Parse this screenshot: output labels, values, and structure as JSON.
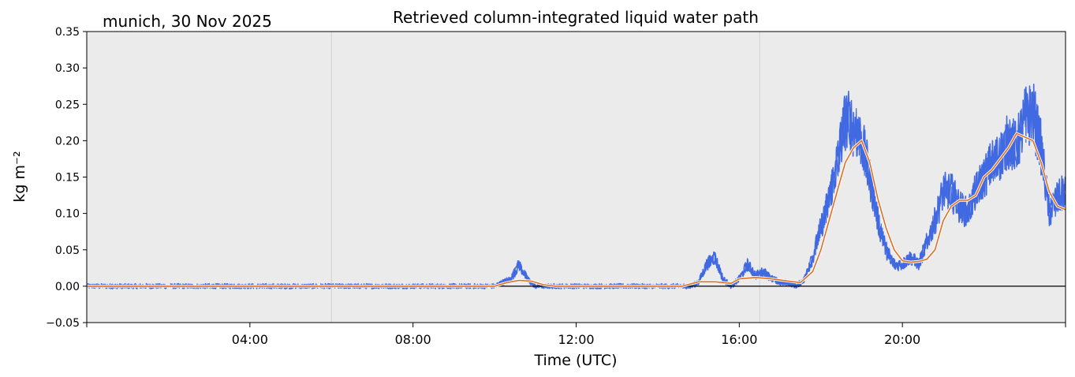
{
  "chart_data": {
    "type": "line",
    "title": "Retrieved column-integrated liquid water path",
    "subtitle": "munich, 30 Nov 2025",
    "xlabel": "Time (UTC)",
    "ylabel": "kg m⁻²",
    "xlim_hours": [
      0,
      24
    ],
    "ylim": [
      -0.05,
      0.35
    ],
    "x_ticks": [
      "04:00",
      "08:00",
      "12:00",
      "16:00",
      "20:00"
    ],
    "x_tick_hours": [
      4,
      8,
      12,
      16,
      20
    ],
    "y_ticks": [
      "−0.05",
      "0.00",
      "0.05",
      "0.10",
      "0.15",
      "0.20",
      "0.25",
      "0.30",
      "0.35"
    ],
    "y_tick_values": [
      -0.05,
      0.0,
      0.05,
      0.1,
      0.15,
      0.2,
      0.25,
      0.3,
      0.35
    ],
    "grid": false,
    "background": "#ebebeb",
    "vertical_markers_hours": [
      6.0,
      16.5
    ],
    "zero_line": true,
    "series": [
      {
        "role": "raw retrieval (scatter)",
        "color": "#4169e1",
        "x": [
          0,
          1,
          2,
          3,
          4,
          5,
          6,
          7,
          8,
          9,
          10,
          10.4,
          10.6,
          10.8,
          11,
          11.5,
          12,
          13,
          14,
          14.8,
          15.0,
          15.2,
          15.4,
          15.6,
          15.8,
          16.0,
          16.2,
          16.4,
          16.6,
          16.8,
          17.0,
          17.2,
          17.4,
          17.6,
          17.8,
          18.0,
          18.2,
          18.4,
          18.6,
          18.8,
          19.0,
          19.2,
          19.4,
          19.6,
          19.8,
          20.0,
          20.2,
          20.4,
          20.6,
          20.8,
          21.0,
          21.2,
          21.4,
          21.6,
          21.8,
          22.0,
          22.2,
          22.4,
          22.6,
          22.8,
          23.0,
          23.2,
          23.4,
          23.6,
          23.8,
          24.0
        ],
        "y": [
          0.0,
          0.0,
          0.0,
          0.0,
          0.0,
          0.0,
          0.0,
          0.0,
          0.0,
          0.0,
          0.0,
          0.01,
          0.03,
          0.01,
          0.0,
          0.0,
          0.0,
          0.0,
          0.0,
          0.0,
          0.005,
          0.03,
          0.04,
          0.01,
          0.0,
          0.01,
          0.03,
          0.015,
          0.02,
          0.01,
          0.005,
          0.005,
          0.0,
          0.01,
          0.04,
          0.08,
          0.12,
          0.17,
          0.23,
          0.22,
          0.2,
          0.15,
          0.09,
          0.05,
          0.03,
          0.03,
          0.04,
          0.03,
          0.06,
          0.09,
          0.13,
          0.13,
          0.11,
          0.1,
          0.13,
          0.15,
          0.17,
          0.18,
          0.2,
          0.19,
          0.23,
          0.24,
          0.19,
          0.1,
          0.12,
          0.13
        ]
      },
      {
        "role": "smoothed",
        "color": "#e06d1f",
        "x": [
          0,
          1,
          2,
          3,
          4,
          5,
          6,
          7,
          8,
          9,
          10,
          10.3,
          10.6,
          10.9,
          11.2,
          11.5,
          12,
          13,
          14,
          14.6,
          15.0,
          15.4,
          15.8,
          16.0,
          16.4,
          16.8,
          17.2,
          17.5,
          17.8,
          18.0,
          18.2,
          18.4,
          18.6,
          18.8,
          19.0,
          19.2,
          19.4,
          19.6,
          19.8,
          20.0,
          20.2,
          20.4,
          20.6,
          20.8,
          21.0,
          21.2,
          21.4,
          21.6,
          21.8,
          22.0,
          22.2,
          22.4,
          22.6,
          22.8,
          23.0,
          23.2,
          23.4,
          23.6,
          23.8,
          24.0
        ],
        "y": [
          0.0,
          0.0,
          0.0,
          0.0,
          0.0,
          0.0,
          0.0,
          0.0,
          0.0,
          0.0,
          0.0,
          0.005,
          0.008,
          0.007,
          0.002,
          0.0,
          0.0,
          0.0,
          0.0,
          0.0,
          0.006,
          0.006,
          0.004,
          0.01,
          0.012,
          0.01,
          0.007,
          0.005,
          0.02,
          0.05,
          0.09,
          0.13,
          0.17,
          0.19,
          0.2,
          0.17,
          0.12,
          0.08,
          0.05,
          0.035,
          0.033,
          0.034,
          0.037,
          0.05,
          0.09,
          0.11,
          0.118,
          0.118,
          0.125,
          0.15,
          0.16,
          0.175,
          0.19,
          0.21,
          0.205,
          0.2,
          0.17,
          0.13,
          0.11,
          0.105
        ]
      }
    ]
  }
}
